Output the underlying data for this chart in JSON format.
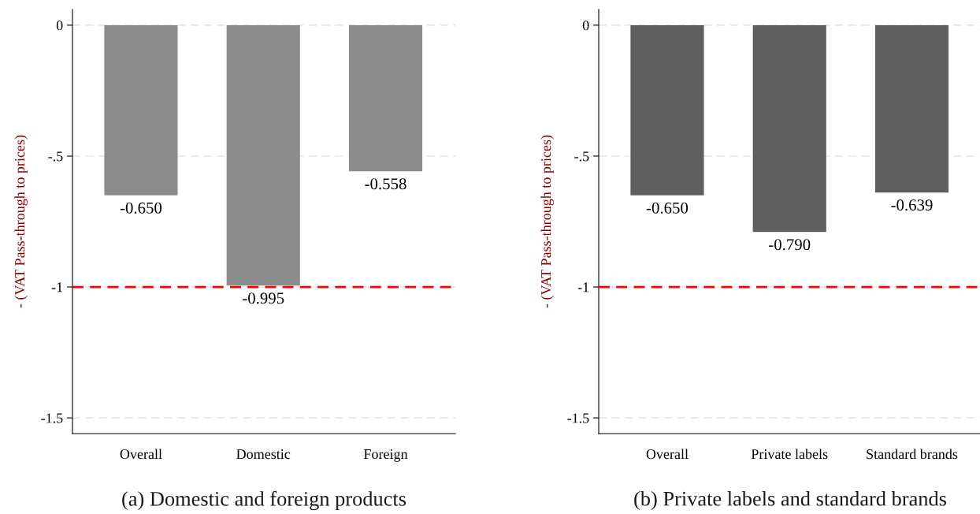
{
  "chart_data": [
    {
      "type": "bar",
      "title": "(a) Domestic and foreign products",
      "ylabel": "- (VAT Pass-through to prices)",
      "categories": [
        "Overall",
        "Domestic",
        "Foreign"
      ],
      "values": [
        -0.65,
        -0.995,
        -0.558
      ],
      "value_labels": [
        "-0.650",
        "-0.995",
        "-0.558"
      ],
      "color": "#8c8c8c",
      "ylim": [
        -1.56,
        0.06
      ],
      "yticks": [
        0,
        {
          "value": -0.5,
          "label": "-.5"
        },
        -1,
        -1.5
      ],
      "grid": "y",
      "ref_lines": [
        {
          "axis": "y",
          "value": -1,
          "color": "#ff0000",
          "line_style": "dashed"
        }
      ]
    },
    {
      "type": "bar",
      "title": "(b) Private labels and standard brands",
      "ylabel": "- (VAT Pass-through to prices)",
      "categories": [
        "Overall",
        "Private labels",
        "Standard brands"
      ],
      "values": [
        -0.65,
        -0.79,
        -0.639
      ],
      "value_labels": [
        "-0.650",
        "-0.790",
        "-0.639"
      ],
      "color": "#5f5f5f",
      "ylim": [
        -1.56,
        0.06
      ],
      "yticks": [
        0,
        {
          "value": -0.5,
          "label": "-.5"
        },
        -1,
        -1.5
      ],
      "grid": "y",
      "ref_lines": [
        {
          "axis": "y",
          "value": -1,
          "color": "#ff0000",
          "line_style": "dashed"
        }
      ]
    }
  ]
}
